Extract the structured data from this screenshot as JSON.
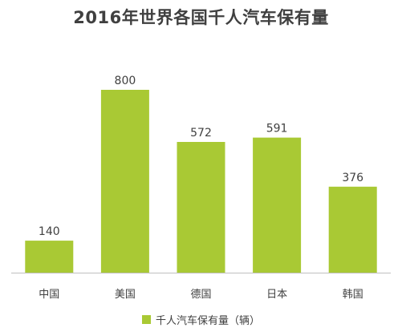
{
  "colors": {
    "bar": "#a9c934",
    "text": "#404040",
    "axis": "#bfbfbf"
  },
  "chart_data": {
    "type": "bar",
    "title": "2016年世界各国千人汽车保有量",
    "categories": [
      "中国",
      "美国",
      "德国",
      "日本",
      "韩国"
    ],
    "series": [
      {
        "name": "千人汽车保有量（辆）",
        "values": [
          140,
          800,
          572,
          591,
          376
        ]
      }
    ],
    "data_labels": [
      "140",
      "800",
      "572",
      "591",
      "376"
    ],
    "ylim": [
      0,
      800
    ],
    "grid": false,
    "legend_position": "bottom"
  }
}
